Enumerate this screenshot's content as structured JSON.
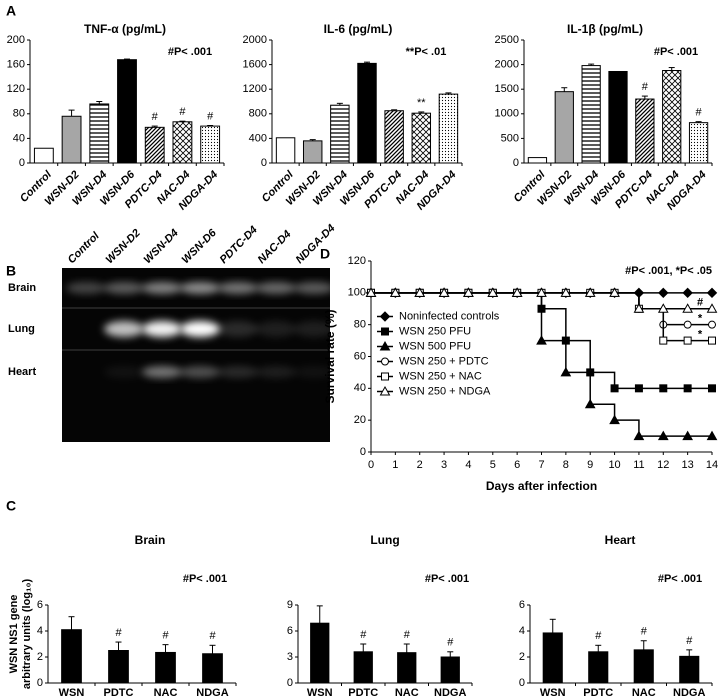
{
  "panels": [
    "A",
    "B",
    "C",
    "D"
  ],
  "gel": {
    "lanes": [
      "Control",
      "WSN-D2",
      "WSN-D4",
      "WSN-D6",
      "PDTC-D4",
      "NAC-D4",
      "NDGA-D4"
    ],
    "rows": [
      "Brain",
      "Lung",
      "Heart"
    ]
  },
  "chart_data": [
    {
      "type": "bar",
      "title": "TNF-α (pg/mL)",
      "annotation": "#P< .001",
      "categories": [
        "Control",
        "WSN-D2",
        "WSN-D4",
        "WSN-D6",
        "PDTC-D4",
        "NAC-D4",
        "NDGA-D4"
      ],
      "values": [
        24,
        76,
        96,
        168,
        58,
        67,
        60
      ],
      "errors": [
        null,
        10,
        4,
        1,
        2,
        1,
        1
      ],
      "bar_labels": [
        null,
        null,
        null,
        null,
        "#",
        "#",
        "#"
      ],
      "ylim": [
        0,
        200
      ],
      "yticks": [
        0,
        40,
        80,
        120,
        160,
        200
      ]
    },
    {
      "type": "bar",
      "title": "IL-6 (pg/mL)",
      "annotation": "**P< .01",
      "categories": [
        "Control",
        "WSN-D2",
        "WSN-D4",
        "WSN-D6",
        "PDTC-D4",
        "NAC-D4",
        "NDGA-D4"
      ],
      "values": [
        410,
        360,
        940,
        1620,
        850,
        810,
        1120
      ],
      "errors": [
        null,
        20,
        30,
        20,
        15,
        20,
        20
      ],
      "bar_labels": [
        null,
        null,
        null,
        null,
        null,
        "**",
        null
      ],
      "ylim": [
        0,
        2000
      ],
      "yticks": [
        0,
        400,
        800,
        1200,
        1600,
        2000
      ]
    },
    {
      "type": "bar",
      "title": "IL-1β (pg/mL)",
      "annotation": "#P< .001",
      "categories": [
        "Control",
        "WSN-D2",
        "WSN-D4",
        "WSN-D6",
        "PDTC-D4",
        "NAC-D4",
        "NDGA-D4"
      ],
      "values": [
        110,
        1450,
        1980,
        1860,
        1300,
        1880,
        820
      ],
      "errors": [
        null,
        80,
        30,
        null,
        60,
        60,
        20
      ],
      "bar_labels": [
        null,
        null,
        null,
        null,
        "#",
        null,
        "#"
      ],
      "ylim": [
        0,
        2500
      ],
      "yticks": [
        0,
        500,
        1000,
        1500,
        2000,
        2500
      ]
    },
    {
      "type": "line",
      "ylabel": "Survival rate (%)",
      "xlabel": "Days after infection",
      "annotation": "#P< .001, *P< .05",
      "step": true,
      "legend": "center left",
      "x": [
        0,
        1,
        2,
        3,
        4,
        5,
        6,
        7,
        8,
        9,
        10,
        11,
        12,
        13,
        14
      ],
      "xlim": [
        0,
        14
      ],
      "xticks": [
        0,
        1,
        2,
        3,
        4,
        5,
        6,
        7,
        8,
        9,
        10,
        11,
        12,
        13,
        14
      ],
      "ylim": [
        0,
        120
      ],
      "yticks": [
        0,
        20,
        40,
        60,
        80,
        100,
        120
      ],
      "series": [
        {
          "name": "Noninfected controls",
          "color": "#000000",
          "values": [
            100,
            100,
            100,
            100,
            100,
            100,
            100,
            100,
            100,
            100,
            100,
            100,
            100,
            100,
            100
          ]
        },
        {
          "name": "WSN 250 PFU",
          "color": "#000000",
          "values": [
            100,
            100,
            100,
            100,
            100,
            100,
            100,
            90,
            70,
            50,
            40,
            40,
            40,
            40,
            40
          ]
        },
        {
          "name": "WSN 500 PFU",
          "color": "#000000",
          "values": [
            100,
            100,
            100,
            100,
            100,
            100,
            100,
            70,
            50,
            30,
            20,
            10,
            10,
            10,
            10
          ]
        },
        {
          "name": "WSN 250 + PDTC",
          "color": "#000000",
          "label": "*",
          "values": [
            100,
            100,
            100,
            100,
            100,
            100,
            100,
            100,
            100,
            100,
            100,
            90,
            80,
            80,
            80
          ]
        },
        {
          "name": "WSN 250 + NAC",
          "color": "#000000",
          "label": "*",
          "values": [
            100,
            100,
            100,
            100,
            100,
            100,
            100,
            100,
            100,
            100,
            100,
            90,
            70,
            70,
            70
          ]
        },
        {
          "name": "WSN 250 + NDGA",
          "color": "#000000",
          "label": "#",
          "values": [
            100,
            100,
            100,
            100,
            100,
            100,
            100,
            100,
            100,
            100,
            100,
            90,
            90,
            90,
            90
          ]
        }
      ]
    },
    {
      "type": "bar",
      "title": "Brain",
      "annotation": "#P< .001",
      "color": "#000000",
      "ylabel": [
        "WSN NS1 gene",
        "arbitrary units (log₁₀)"
      ],
      "categories": [
        "WSN",
        "PDTC",
        "NAC",
        "NDGA"
      ],
      "values": [
        4.1,
        2.5,
        2.35,
        2.25
      ],
      "errors": [
        1.0,
        0.65,
        0.6,
        0.65
      ],
      "bar_labels": [
        null,
        "#",
        "#",
        "#"
      ],
      "ylim": [
        0,
        6
      ],
      "yticks": [
        0,
        2,
        4,
        6
      ]
    },
    {
      "type": "bar",
      "title": "Lung",
      "annotation": "#P< .001",
      "color": "#000000",
      "categories": [
        "WSN",
        "PDTC",
        "NAC",
        "NDGA"
      ],
      "values": [
        6.9,
        3.6,
        3.5,
        3.0
      ],
      "errors": [
        2.0,
        0.9,
        1.0,
        0.6
      ],
      "bar_labels": [
        null,
        "#",
        "#",
        "#"
      ],
      "ylim": [
        0,
        9
      ],
      "yticks": [
        0,
        3,
        6,
        9
      ]
    },
    {
      "type": "bar",
      "title": "Heart",
      "annotation": "#P< .001",
      "color": "#000000",
      "categories": [
        "WSN",
        "PDTC",
        "NAC",
        "NDGA"
      ],
      "values": [
        3.85,
        2.4,
        2.55,
        2.05
      ],
      "errors": [
        1.05,
        0.5,
        0.7,
        0.5
      ],
      "bar_labels": [
        null,
        "#",
        "#",
        "#"
      ],
      "ylim": [
        0,
        6
      ],
      "yticks": [
        0,
        2,
        4,
        6
      ]
    }
  ]
}
